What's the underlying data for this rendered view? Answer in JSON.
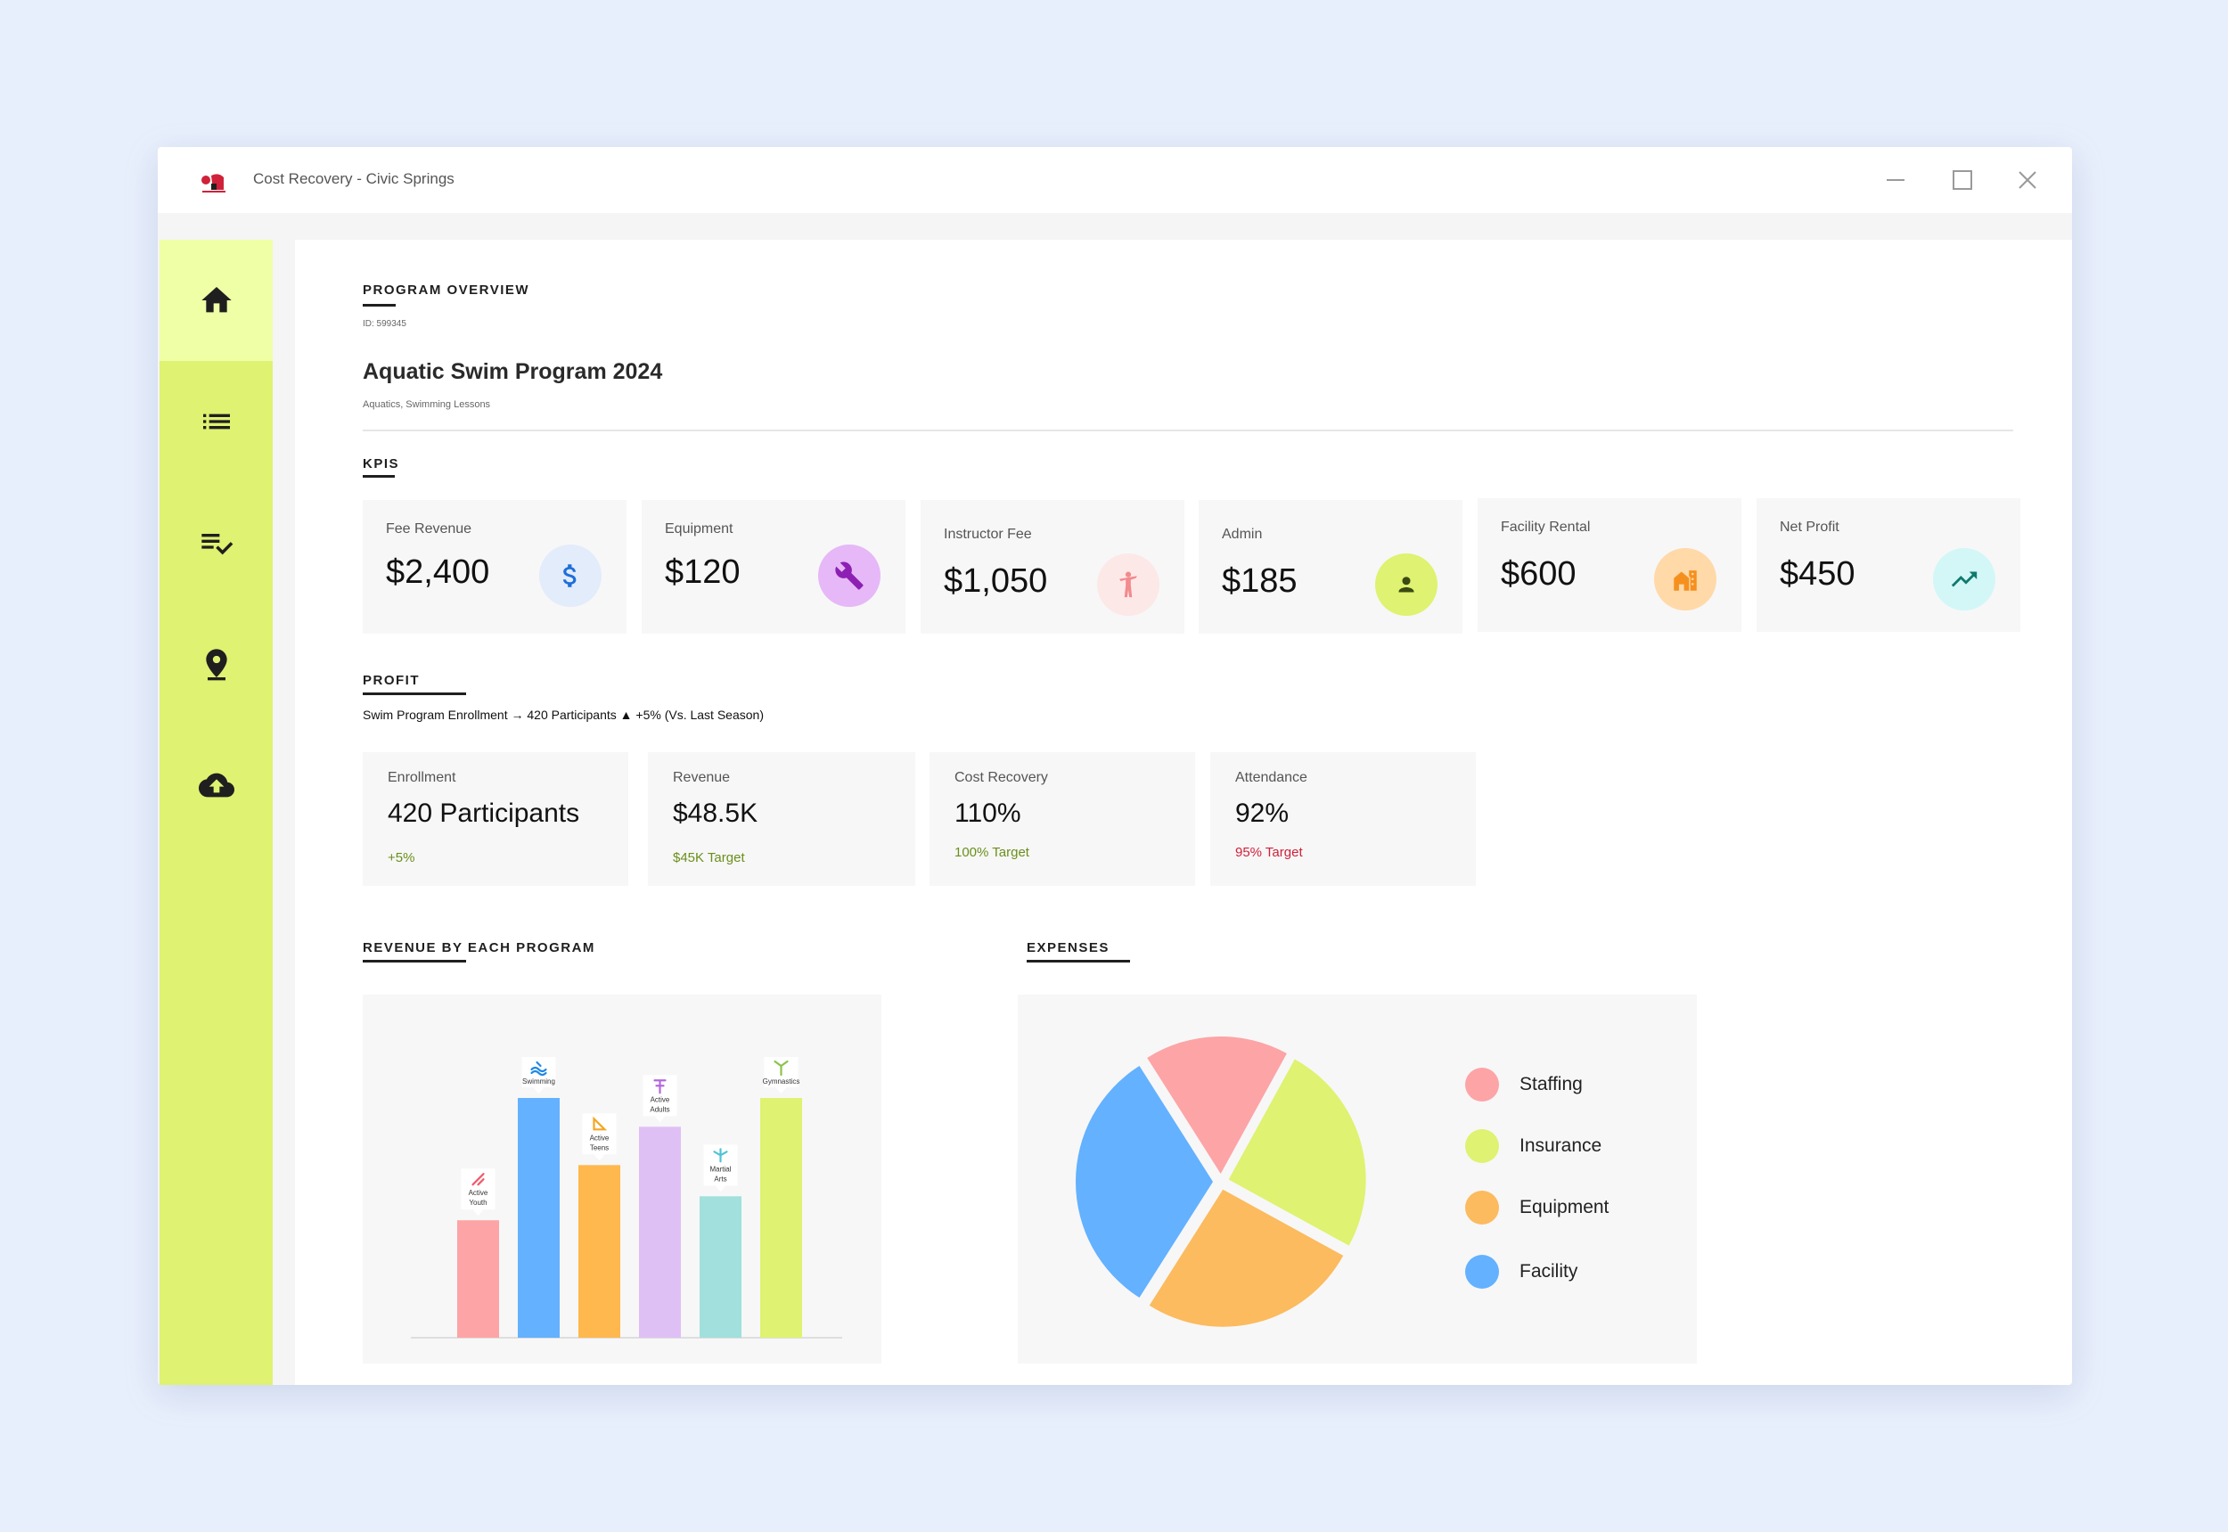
{
  "window": {
    "title": "Cost Recovery - Civic Springs",
    "icons": [
      "app-logo-icon",
      "minimize-icon",
      "maximize-icon",
      "close-icon"
    ]
  },
  "sidebar": {
    "items": [
      {
        "icon": "home-icon",
        "active": true
      },
      {
        "icon": "list-icon",
        "active": false
      },
      {
        "icon": "checklist-icon",
        "active": false
      },
      {
        "icon": "location-pin-icon",
        "active": false
      },
      {
        "icon": "cloud-upload-icon",
        "active": false
      }
    ]
  },
  "overview": {
    "section_label": "PROGRAM OVERVIEW",
    "id_text": "ID: 599345",
    "title": "Aquatic Swim Program 2024",
    "subtitle": "Aquatics, Swimming Lessons"
  },
  "kpis": {
    "section_label": "KPIS",
    "cards": [
      {
        "label": "Fee Revenue",
        "value": "$2,400",
        "icon": "dollar-icon",
        "color": "#e3ecfb"
      },
      {
        "label": "Equipment",
        "value": "$120",
        "icon": "wrench-icon",
        "color": "#e6b8f7"
      },
      {
        "label": "Instructor Fee",
        "value": "$1,050",
        "icon": "instructor-icon",
        "color": "#fde8e8"
      },
      {
        "label": "Admin",
        "value": "$185",
        "icon": "person-icon",
        "color": "#dff271"
      },
      {
        "label": "Facility Rental",
        "value": "$600",
        "icon": "building-icon",
        "color": "#ffd9a8"
      },
      {
        "label": "Net Profit",
        "value": "$450",
        "icon": "trending-up-icon",
        "color": "#d3f7f7"
      }
    ]
  },
  "profit": {
    "section_label": "PROFIT",
    "caption": "Swim Program Enrollment → 420 Participants ▲ +5% (Vs. Last Season)",
    "cards": [
      {
        "label": "Enrollment",
        "value": "420 Participants",
        "sub": "+5%",
        "sub_color": "#6a8f1a"
      },
      {
        "label": "Revenue",
        "value": "$48.5K",
        "sub": "$45K Target",
        "sub_color": "#6a8f1a"
      },
      {
        "label": "Cost Recovery",
        "value": "110%",
        "sub": "100% Target",
        "sub_color": "#6a8f1a"
      },
      {
        "label": "Attendance",
        "value": "92%",
        "sub": "95% Target",
        "sub_color": "#d0213a"
      }
    ]
  },
  "revenue_chart": {
    "section_label": "REVENUE BY EACH PROGRAM"
  },
  "expenses_chart": {
    "section_label": "EXPENSES"
  },
  "chart_data": [
    {
      "type": "bar",
      "title": "REVENUE BY EACH PROGRAM",
      "categories": [
        "Active Youth",
        "Swimming",
        "Active Teens",
        "Active Adults",
        "Martial Arts",
        "Gymnastics"
      ],
      "category_label_lines": [
        [
          "Active",
          "Youth"
        ],
        [
          "Swimming"
        ],
        [
          "Active",
          "Teens"
        ],
        [
          "Active",
          "Adults"
        ],
        [
          "Martial",
          "Arts"
        ],
        [
          "Gymnastics"
        ]
      ],
      "values": [
        49,
        100,
        72,
        88,
        59,
        100
      ],
      "colors": [
        "#fda4a6",
        "#63b1ff",
        "#ffb84d",
        "#dfc0f5",
        "#a1e0dc",
        "#dff271"
      ],
      "icons": [
        "youth-icon",
        "swimming-icon",
        "teens-icon",
        "adults-icon",
        "martial-arts-icon",
        "gymnastics-icon"
      ],
      "icon_colors": [
        "#f05a6a",
        "#1e88e5",
        "#f5a623",
        "#b467e0",
        "#4fc3d6",
        "#8bc34a"
      ],
      "ylim": [
        0,
        100
      ],
      "grid": false,
      "xlabel": "",
      "ylabel": ""
    },
    {
      "type": "pie",
      "title": "EXPENSES",
      "categories": [
        "Staffing",
        "Insurance",
        "Equipment",
        "Facility"
      ],
      "values": [
        17,
        25,
        26,
        32
      ],
      "colors": [
        "#fda4a6",
        "#dff271",
        "#fbbb5e",
        "#63b1ff"
      ],
      "legend_position": "right"
    }
  ]
}
